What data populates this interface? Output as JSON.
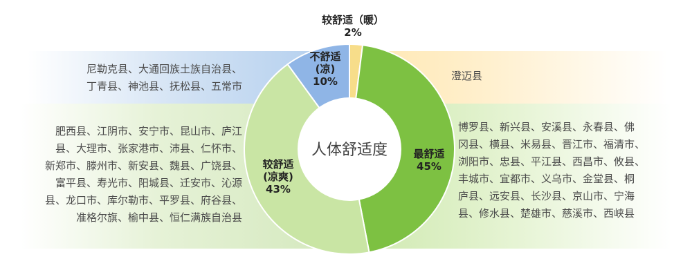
{
  "chart_data": {
    "type": "pie",
    "center_label": "人体舒适度",
    "slices": [
      {
        "name_lines": [
          "较舒适（暖）"
        ],
        "value": 2,
        "percent_label": "2%",
        "color": "#f7dd8a"
      },
      {
        "name_lines": [
          "最舒适"
        ],
        "value": 45,
        "percent_label": "45%",
        "color": "#7dc142"
      },
      {
        "name_lines": [
          "较舒适",
          "(凉爽)"
        ],
        "value": 43,
        "percent_label": "43%",
        "color": "#c9e5a4"
      },
      {
        "name_lines": [
          "不舒适",
          "(凉)"
        ],
        "value": 10,
        "percent_label": "10%",
        "color": "#8fb5e6"
      }
    ]
  },
  "groups": {
    "cool": [
      "尼勒克县、大通回族土族自治县、",
      "丁青县、神池县、抚松县、五常市"
    ],
    "warm": [
      "澄迈县"
    ],
    "fresh": [
      "肥西县、江阴市、安宁市、昆山市、庐江",
      "县、大理市、张家港市、沛县、仁怀市、",
      "新郑市、滕州市、新安县、魏县、广饶县、",
      "富平县、寿光市、阳城县、迁安市、沁源",
      "县、龙口市、库尔勒市、平罗县、府谷县、",
      "准格尔旗、榆中县、恒仁满族自治县"
    ],
    "best": [
      "博罗县、新兴县、安溪县、永春县、佛",
      "冈县、横县、米易县、晋江市、福清市、",
      "浏阳市、忠县、平江县、西昌市、攸县、",
      "丰城市、宜都市、义乌市、金堂县、桐",
      "庐县、远安县、长沙县、京山市、宁海",
      "县、修水县、楚雄市、慈溪市、西峡县"
    ]
  }
}
